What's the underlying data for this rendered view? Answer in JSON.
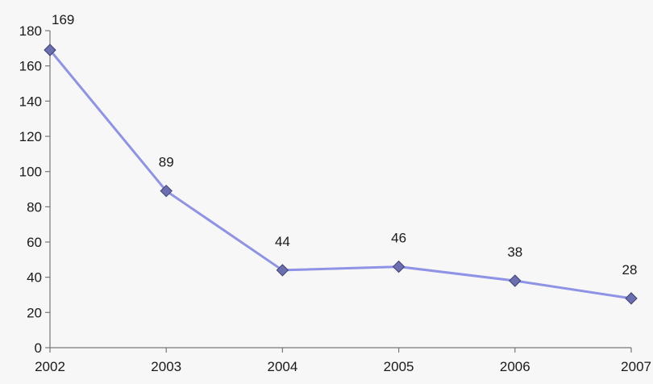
{
  "chart_data": {
    "type": "line",
    "categories": [
      "2002",
      "2003",
      "2004",
      "2005",
      "2006",
      "2007"
    ],
    "values": [
      169,
      89,
      44,
      46,
      38,
      28
    ],
    "data_labels": [
      "169",
      "89",
      "44",
      "46",
      "38",
      "28"
    ],
    "ylim": [
      0,
      180
    ],
    "yticks": [
      0,
      20,
      40,
      60,
      80,
      100,
      120,
      140,
      160,
      180
    ],
    "grid": false,
    "marker": "diamond",
    "line_color": "#8f93e6",
    "marker_color": "#6b6fb0"
  }
}
